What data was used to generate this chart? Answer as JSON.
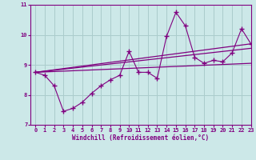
{
  "xlabel": "Windchill (Refroidissement éolien,°C)",
  "bg_color": "#cce8e8",
  "grid_color": "#aacccc",
  "line_color": "#800080",
  "xlim": [
    -0.5,
    23
  ],
  "ylim": [
    7,
    11
  ],
  "yticks": [
    7,
    8,
    9,
    10,
    11
  ],
  "xticks": [
    0,
    1,
    2,
    3,
    4,
    5,
    6,
    7,
    8,
    9,
    10,
    11,
    12,
    13,
    14,
    15,
    16,
    17,
    18,
    19,
    20,
    21,
    22,
    23
  ],
  "series1_x": [
    0,
    1,
    2,
    3,
    4,
    5,
    6,
    7,
    8,
    9,
    10,
    11,
    12,
    13,
    14,
    15,
    16,
    17,
    18,
    19,
    20,
    21,
    22,
    23
  ],
  "series1_y": [
    8.75,
    8.65,
    8.3,
    7.45,
    7.55,
    7.75,
    8.05,
    8.3,
    8.5,
    8.65,
    9.45,
    8.75,
    8.75,
    8.55,
    9.95,
    10.75,
    10.3,
    9.25,
    9.05,
    9.15,
    9.1,
    9.4,
    10.2,
    9.7
  ],
  "line2_x": [
    0,
    23
  ],
  "line2_y": [
    8.75,
    9.7
  ],
  "line3_x": [
    0,
    23
  ],
  "line3_y": [
    8.75,
    9.55
  ],
  "line4_x": [
    0,
    23
  ],
  "line4_y": [
    8.75,
    9.05
  ]
}
